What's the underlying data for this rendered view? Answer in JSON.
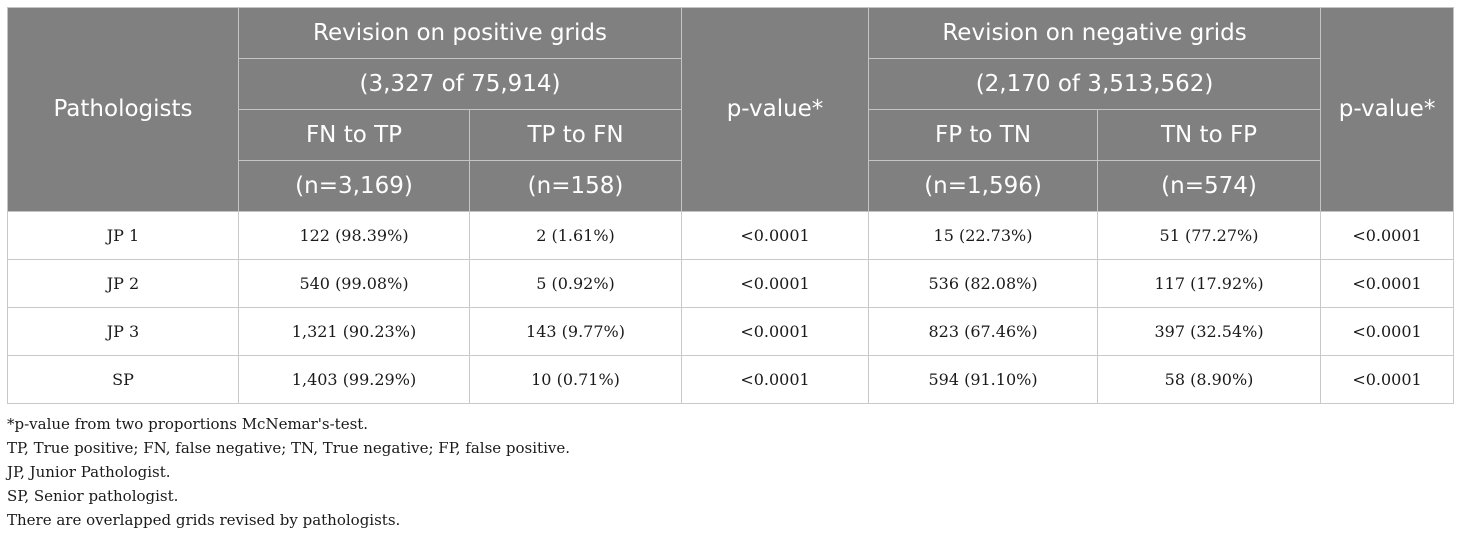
{
  "header": {
    "pathologists": "Pathologists",
    "positive_title": "Revision on positive grids",
    "positive_count": "(3,327 of 75,914)",
    "negative_title": "Revision on negative grids",
    "negative_count": "(2,170 of 3,513,562)",
    "pvalue": "p-value*",
    "fn_to_tp": "FN to TP",
    "fn_to_tp_n": "(n=3,169)",
    "tp_to_fn": "TP to FN",
    "tp_to_fn_n": "(n=158)",
    "fp_to_tn": "FP to TN",
    "fp_to_tn_n": "(n=1,596)",
    "tn_to_fp": "TN to FP",
    "tn_to_fp_n": "(n=574)"
  },
  "rows": [
    {
      "name": "JP 1",
      "fn_tp": "122 (98.39%)",
      "tp_fn": "2 (1.61%)",
      "p1": "<0.0001",
      "fp_tn": "15 (22.73%)",
      "tn_fp": "51 (77.27%)",
      "p2": "<0.0001"
    },
    {
      "name": "JP 2",
      "fn_tp": "540 (99.08%)",
      "tp_fn": "5 (0.92%)",
      "p1": "<0.0001",
      "fp_tn": "536 (82.08%)",
      "tn_fp": "117 (17.92%)",
      "p2": "<0.0001"
    },
    {
      "name": "JP 3",
      "fn_tp": "1,321 (90.23%)",
      "tp_fn": "143 (9.77%)",
      "p1": "<0.0001",
      "fp_tn": "823 (67.46%)",
      "tn_fp": "397 (32.54%)",
      "p2": "<0.0001"
    },
    {
      "name": "SP",
      "fn_tp": "1,403 (99.29%)",
      "tp_fn": "10 (0.71%)",
      "p1": "<0.0001",
      "fp_tn": "594 (91.10%)",
      "tn_fp": "58 (8.90%)",
      "p2": "<0.0001"
    }
  ],
  "notes": [
    "*p-value from two proportions McNemar's-test.",
    "TP, True positive; FN, false negative; TN, True negative; FP, false positive.",
    "JP, Junior Pathologist.",
    "SP, Senior pathologist.",
    "There are overlapped grids revised by pathologists."
  ]
}
